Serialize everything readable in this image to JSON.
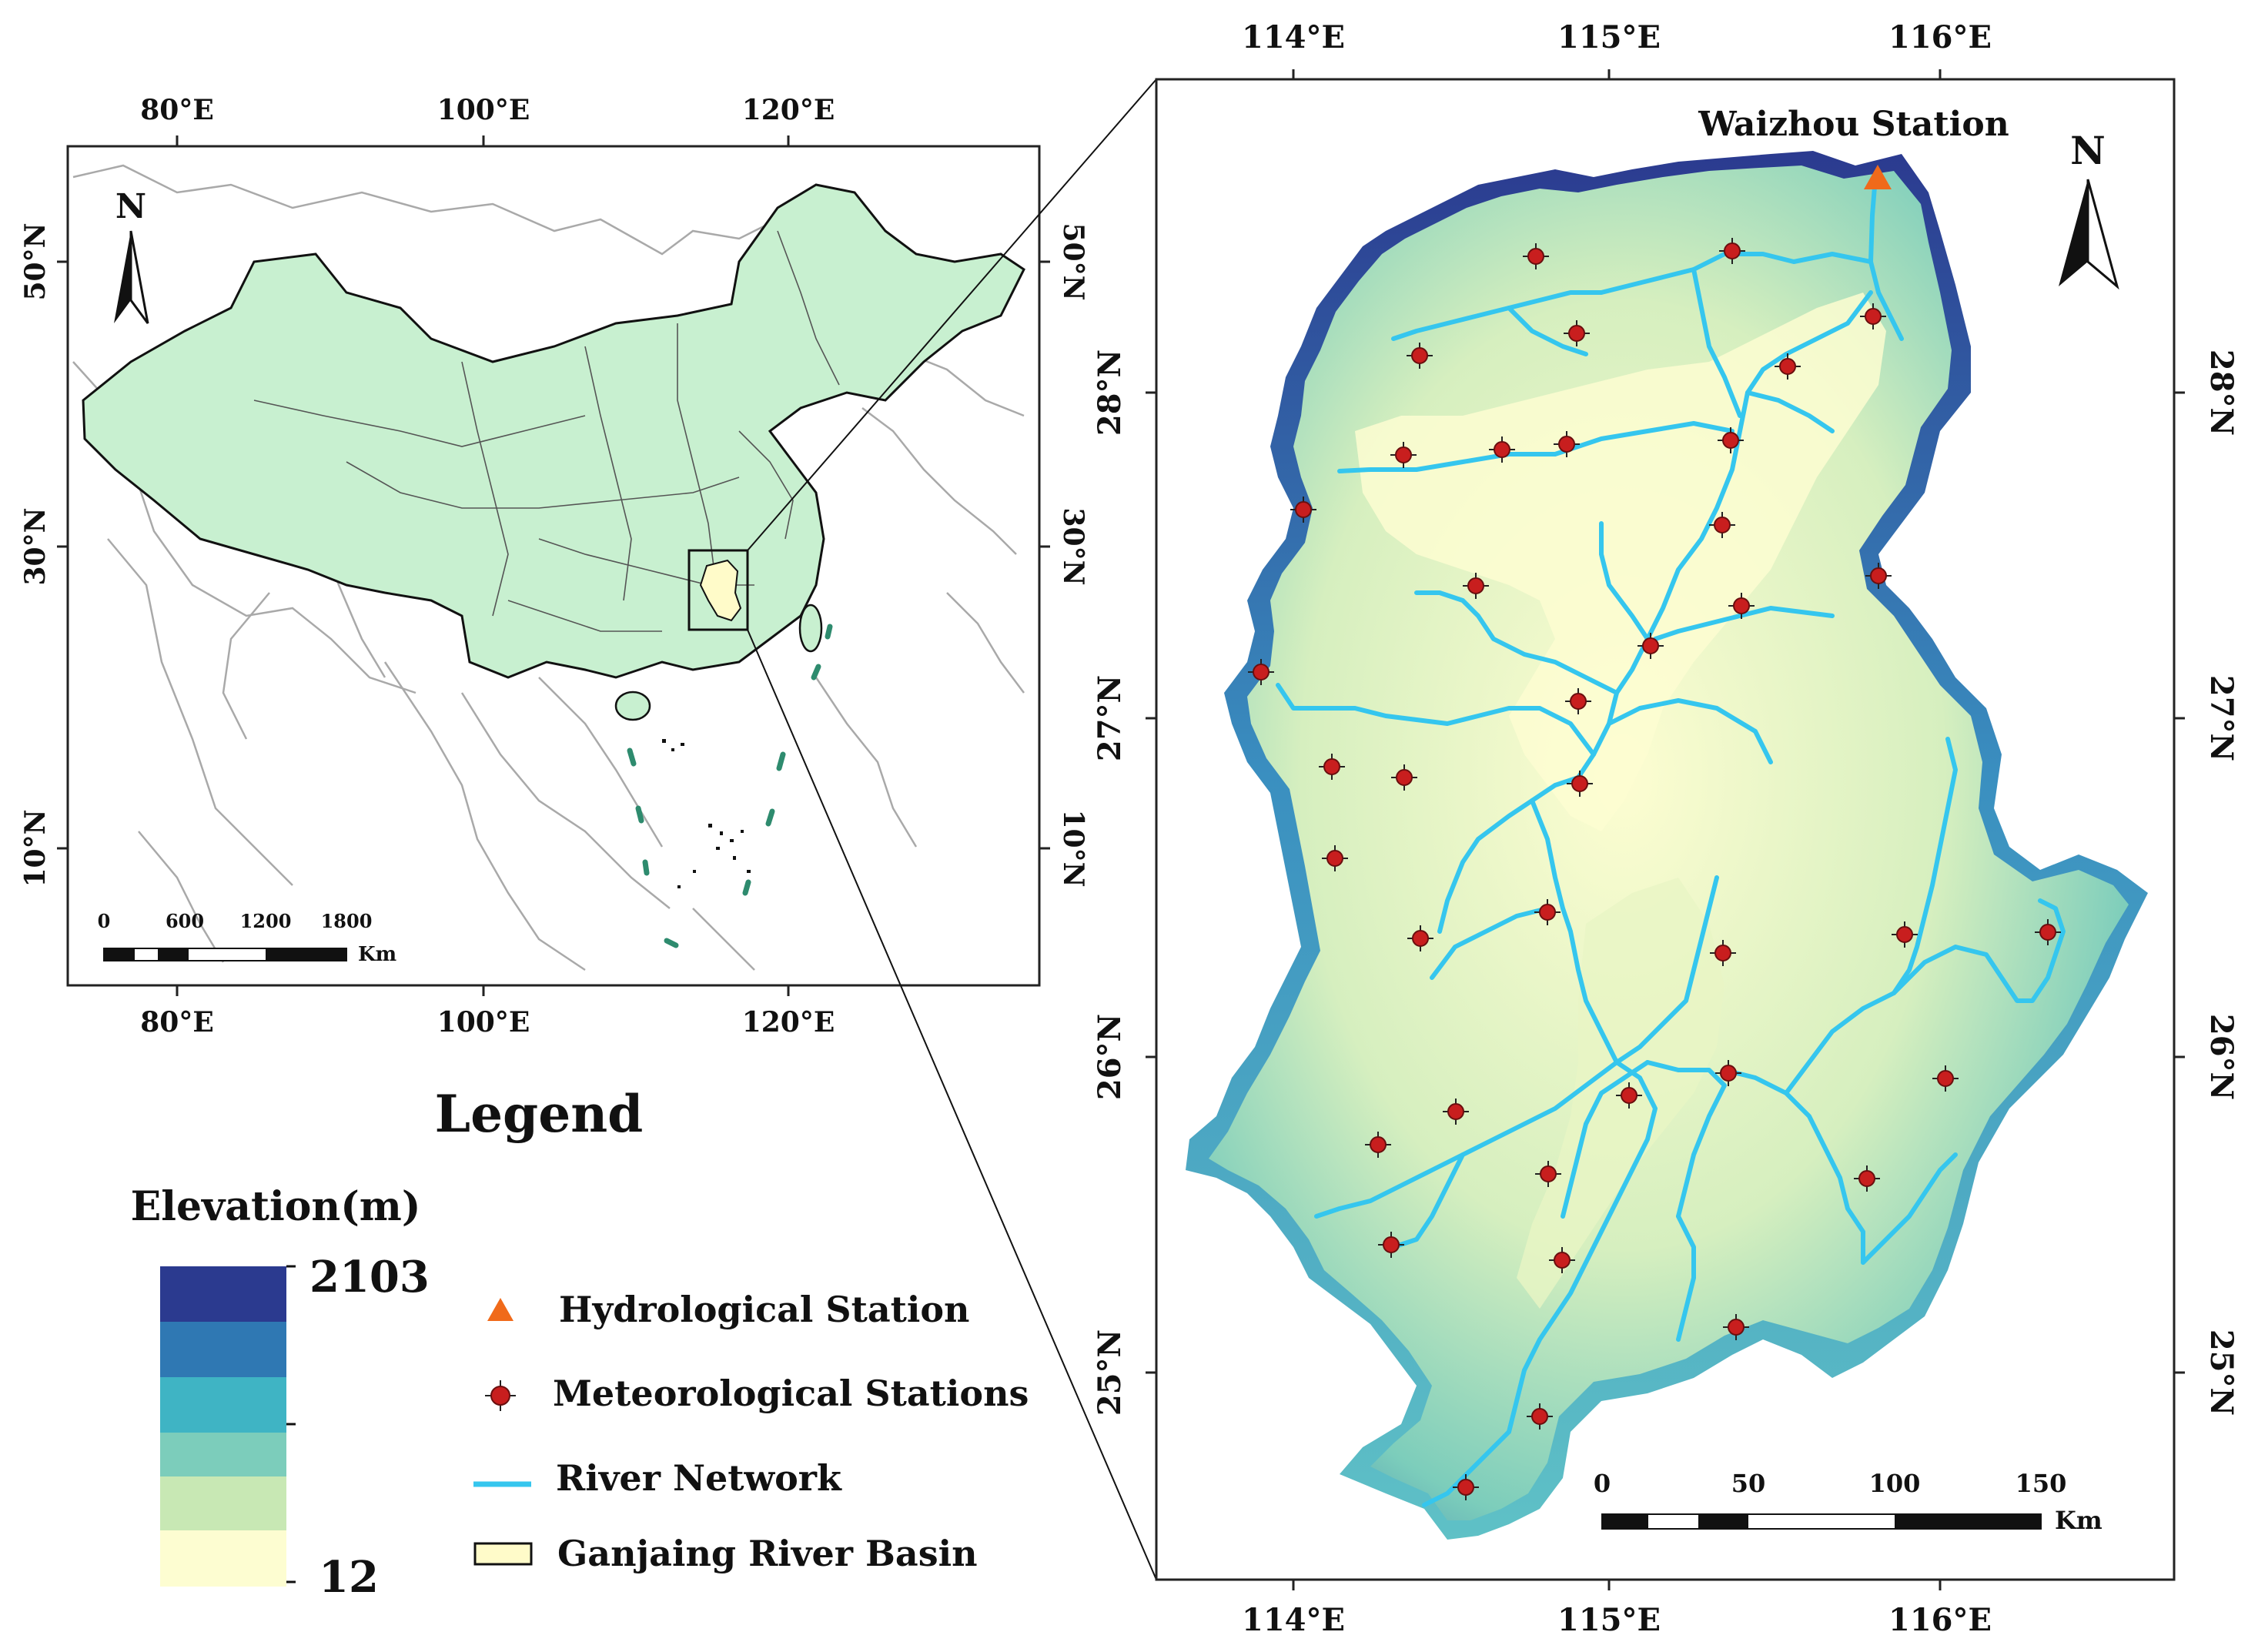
{
  "overview_map": {
    "top_ticks": [
      "80°E",
      "100°E",
      "120°E"
    ],
    "bottom_ticks": [
      "80°E",
      "100°E",
      "120°E"
    ],
    "right_ticks": [
      "50°N",
      "30°N",
      "10°N"
    ],
    "left_ticks": [
      "50°N",
      "30°N",
      "10°N"
    ],
    "north_label": "N",
    "scale_labels": [
      "0",
      "600",
      "1200",
      "1800"
    ],
    "scale_unit": "Km",
    "colors": {
      "china": "#c8f0d0",
      "basin": "#fffbc9",
      "border": "#a9a9a9",
      "islands": "#2e8b6e"
    }
  },
  "legend": {
    "title": "Legend",
    "elevation_title": "Elevation(m)",
    "elevation_max": "2103",
    "elevation_min": "12",
    "ramp_colors": [
      "#2b3a8f",
      "#2f78b3",
      "#3fb4c4",
      "#7ccdbb",
      "#c8e8b4",
      "#fdfdd1"
    ],
    "items": [
      {
        "label": "Hydrological Station",
        "symbol": "triangle",
        "color": "#f06a1a"
      },
      {
        "label": "Meteorological Stations",
        "symbol": "dot-cross",
        "color": "#c81e1e"
      },
      {
        "label": "River Network",
        "symbol": "line",
        "color": "#35c6ee"
      },
      {
        "label": "Ganjaing River Basin",
        "symbol": "rect",
        "color": "#fffbc9"
      }
    ]
  },
  "basin_map": {
    "top_ticks": [
      "114°E",
      "115°E",
      "116°E"
    ],
    "bottom_ticks": [
      "114°E",
      "115°E",
      "116°E"
    ],
    "left_ticks": [
      "28°N",
      "27°N",
      "26°N",
      "25°N"
    ],
    "right_ticks": [
      "28°N",
      "27°N",
      "26°N",
      "25°N"
    ],
    "station_label": "Waizhou Station",
    "north_label": "N",
    "scale_labels": [
      "0",
      "50",
      "100",
      "150"
    ],
    "scale_unit": "Km",
    "colors": {
      "river": "#35c6ee",
      "station": "#f06a1a",
      "met": "#c81e1e"
    }
  }
}
